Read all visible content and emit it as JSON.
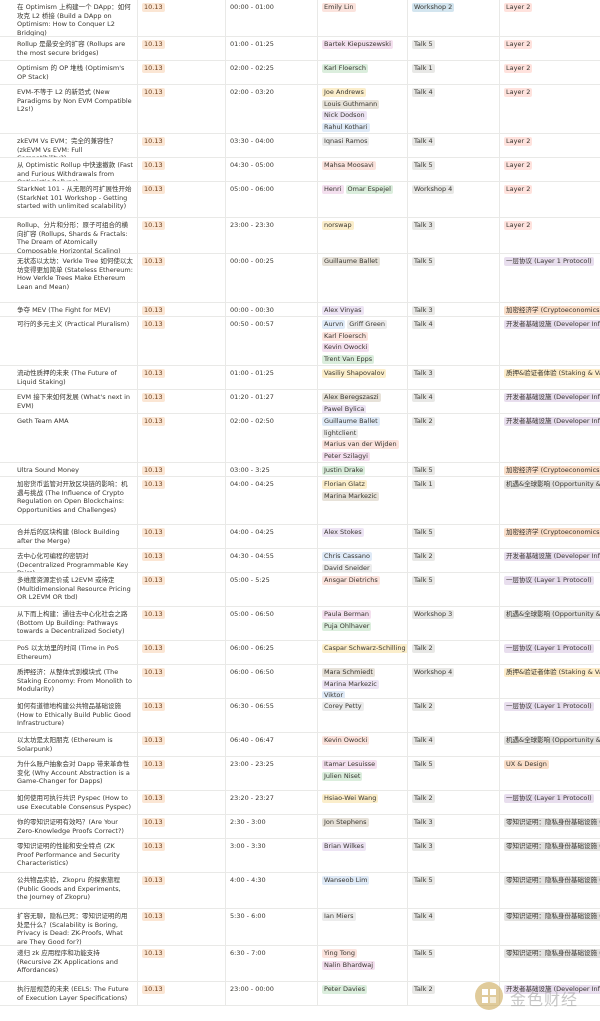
{
  "colors": {
    "speaker": [
      "#fbe3dd",
      "#f4e0ef",
      "#dbeedd",
      "#fbeecb",
      "#e7e2d9",
      "#ede4f4",
      "#dfeaf7",
      "#ececec"
    ],
    "type_workshop2": "#d3e5ef",
    "type_talk": "#e8e8e6",
    "track_l2": "#ffe2dd",
    "track_l1": "#e8deee",
    "track_econ": "#fadec9",
    "track_dev": "#e8deee",
    "track_staking": "#fdecc8",
    "track_opportunity": "#e3e2e0",
    "track_ux": "#fadec9",
    "track_zk": "#e3e2e0"
  },
  "rows": [
    {
      "title": "在 Optimism 上构建一个 DApp：如何攻克 L2 桥接 (Build a DApp on Optimism: How to Conquer L2 Bridging)",
      "date": "10.13",
      "time": "00:00 - 01:00",
      "speakers": [
        "Emily Lin"
      ],
      "type": "Workshop 2",
      "track": "Layer 2"
    },
    {
      "title": "Rollup 是最安全的扩容 (Rollups are the most secure bridges)",
      "date": "10.13",
      "time": "01:00 - 01:25",
      "speakers": [
        "Bartek Kiepuszewski"
      ],
      "type": "Talk 5",
      "track": "Layer 2"
    },
    {
      "title": "Optimism 的 OP 堆栈 (Optimism's OP Stack)",
      "date": "10.13",
      "time": "02:00 - 02:25",
      "speakers": [
        "Karl Floersch"
      ],
      "type": "Talk 1",
      "track": "Layer 2"
    },
    {
      "title": "EVM-不等于 L2 的新范式 (New Paradigms by Non EVM Compatible L2s!)",
      "date": "10.13",
      "time": "02:00 - 03:20",
      "speakers": [
        "Joe Andrews",
        "Louis Guthmann",
        "Nick Dodson",
        "Rahul Kothari"
      ],
      "type": "Talk 4",
      "track": "Layer 2"
    },
    {
      "title": "zkEVM Vs EVM：完全的兼容性？(zkEVM Vs EVM: Full Compatibility?)",
      "date": "10.13",
      "time": "03:30 - 04:00",
      "speakers": [
        "Iqnasi Ramos"
      ],
      "type": "Talk 4",
      "track": "Layer 2"
    },
    {
      "title": "从 Optimistic Rollup 中快速撤款 (Fast and Furious Withdrawals from Optimistic Rollups)",
      "date": "10.13",
      "time": "04:30 - 05:00",
      "speakers": [
        "Mahsa Moosavi"
      ],
      "type": "Talk 5",
      "track": "Layer 2"
    },
    {
      "title": "StarkNet 101 - 从无限的可扩展性开始 (StarkNet 101 Workshop - Getting started with unlimited scalability)",
      "date": "10.13",
      "time": "05:00 - 06:00",
      "speakers": [
        "Henri",
        "Omar Espejel"
      ],
      "type": "Workshop 4",
      "track": "Layer 2"
    },
    {
      "title": "Rollup、分片和分形：原子可组合的横向扩容 (Rollups, Shards & Fractals: The Dream of Atomically Composable Horizontal Scaling)",
      "date": "10.13",
      "time": "23:00 - 23:30",
      "speakers": [
        "norswap"
      ],
      "type": "Talk 3",
      "track": "Layer 2"
    },
    {
      "title": "无状态以太坊：Verkle Tree 如何使以太坊变得更加简单 (Stateless Ethereum: How Verkle Trees Make Ethereum Lean and Mean)",
      "date": "10.13",
      "time": "00:00 - 00:25",
      "speakers": [
        "Guillaume Ballet"
      ],
      "type": "Talk 5",
      "track": "一层协议 (Layer 1 Protocol)"
    },
    {
      "title": "争夺 MEV (The Fight for MEV)",
      "date": "10.13",
      "time": "00:00 - 00:30",
      "speakers": [
        "Alex Vinyas"
      ],
      "type": "Talk 3",
      "track": "加密经济学 (Cryptoeconomics)"
    },
    {
      "title": "可行的多元主义 (Practical Pluralism)",
      "date": "10.13",
      "time": "00:50 - 00:57",
      "speakers": [
        "Aurvn",
        "Griff Green",
        "Karl Floersch",
        "Kevin Owocki",
        "Trent Van Epps"
      ],
      "type": "Talk 4",
      "track": "开发者基础设施 (Developer Infrastructure)"
    },
    {
      "title": "流动性质押的未来 (The Future of Liquid Staking)",
      "date": "10.13",
      "time": "01:00 - 01:25",
      "speakers": [
        "Vasiliy Shapovalov"
      ],
      "type": "Talk 3",
      "track": "质押&验证者体验 (Staking & Validator Experience)"
    },
    {
      "title": "EVM 接下来如何发展 (What's next in EVM)",
      "date": "10.13",
      "time": "01:20 - 01:27",
      "speakers": [
        "Alex Beregszaszi",
        "Pawel Bylica"
      ],
      "type": "Talk 4",
      "track": "开发者基础设施 (Developer Infrastructure)"
    },
    {
      "title": "Geth Team AMA",
      "date": "10.13",
      "time": "02:00 - 02:50",
      "speakers": [
        "Guillaume Ballet",
        "lightclient",
        "Marius van der Wijden",
        "Peter Szilagyi"
      ],
      "type": "Talk 2",
      "track": "开发者基础设施 (Developer Infrastructure)"
    },
    {
      "title": "Ultra Sound Money",
      "date": "10.13",
      "time": "03:00 - 3:25",
      "speakers": [
        "Justin Drake"
      ],
      "type": "Talk 5",
      "track": "加密经济学 (Cryptoeconomics)"
    },
    {
      "title": "加密货币监管对开放区块链的影响：机遇与挑战 (The Influence of Crypto Regulation on Open Blockchains: Opportunities and Challenges)",
      "date": "10.13",
      "time": "04:00 - 04:25",
      "speakers": [
        "Florian Glatz",
        "Marina Markezic"
      ],
      "type": "Talk 1",
      "track": "机遇&全球影响 (Opportunity & Global Impact)"
    },
    {
      "title": "合并后的区块构建 (Block Building after the Merge)",
      "date": "10.13",
      "time": "04:00 - 04:25",
      "speakers": [
        "Alex Stokes"
      ],
      "type": "Talk 5",
      "track": "加密经济学 (Cryptoeconomics)"
    },
    {
      "title": "去中心化可编程的密钥对 (Decentralized Programmable Key Pairs)",
      "date": "10.13",
      "time": "04:30 - 04:55",
      "speakers": [
        "Chris Cassano",
        "David Sneider"
      ],
      "type": "Talk 2",
      "track": "开发者基础设施 (Developer Infrastructure)"
    },
    {
      "title": "多维度资源定价或 L2EVM 或待定 (Multidimensional Resource Pricing OR L2EVM OR tbd)",
      "date": "10.13",
      "time": "05:00 - 5:25",
      "speakers": [
        "Ansgar Dietrichs"
      ],
      "type": "Talk 5",
      "track": "一层协议 (Layer 1 Protocol)"
    },
    {
      "title": "从下而上构建：通往去中心化社会之路 (Bottom Up Building: Pathways towards a Decentralized Society)",
      "date": "10.13",
      "time": "05:00 - 06:50",
      "speakers": [
        "Paula Berman",
        "Puja Ohlhaver"
      ],
      "type": "Workshop 3",
      "track": "机遇&全球影响 (Opportunity & Global Impact)"
    },
    {
      "title": "PoS 以太坊里的时间 (Time in PoS Ethereum)",
      "date": "10.13",
      "time": "06:00 - 06:25",
      "speakers": [
        "Caspar Schwarz-Schilling"
      ],
      "type": "Talk 2",
      "track": "一层协议 (Layer 1 Protocol)"
    },
    {
      "title": "质押经济：从整体式到模块式 (The Staking Economy: From Monolith to Modularity)",
      "date": "10.13",
      "time": "06:00 - 06:50",
      "speakers": [
        "Mara Schmiedt",
        "Marina Markezic",
        "Viktor"
      ],
      "type": "Workshop 4",
      "track": "质押&验证者体验 (Staking & Validator Experience)"
    },
    {
      "title": "如何有道德地构建公共物品基础设施 (How to Ethically Build Public Good Infrastructure)",
      "date": "10.13",
      "time": "06:30 - 06:55",
      "speakers": [
        "Corey Petty"
      ],
      "type": "Talk 2",
      "track": "一层协议 (Layer 1 Protocol)"
    },
    {
      "title": "以太坊是太阳朋克 (Ethereum is Solarpunk)",
      "date": "10.13",
      "time": "06:40 - 06:47",
      "speakers": [
        "Kevin Owocki"
      ],
      "type": "Talk 4",
      "track": "机遇&全球影响 (Opportunity & Global Impact)"
    },
    {
      "title": "为什么账户抽象会对 Dapp 带来革命性变化 (Why Account Abstraction is a Game-Changer for Dapps)",
      "date": "10.13",
      "time": "23:00 - 23:25",
      "speakers": [
        "Itamar Lesuisse",
        "Julien Niset"
      ],
      "type": "Talk 5",
      "track": "UX & Design"
    },
    {
      "title": "如何使用可执行共识 Pyspec (How to use Executable Consensus Pyspec)",
      "date": "10.13",
      "time": "23:20 - 23:27",
      "speakers": [
        "Hsiao-Wei Wang"
      ],
      "type": "Talk 2",
      "track": "一层协议 (Layer 1 Protocol)"
    },
    {
      "title": "你的零知识证明有效吗？(Are Your Zero-Knowledge Proofs Correct?)",
      "date": "10.13",
      "time": "2:30 - 3:00",
      "speakers": [
        "Jon Stephens"
      ],
      "type": "Talk 3",
      "track": "零知识证明：隐私身份基础设施 (ZK Proofs)"
    },
    {
      "title": "零知识证明的性能和安全特点 (ZK Proof Performance and Security Characteristics)",
      "date": "10.13",
      "time": "3:00 - 3:30",
      "speakers": [
        "Brian Wilkes"
      ],
      "type": "Talk 3",
      "track": "零知识证明：隐私身份基础设施 (ZK Proofs)"
    },
    {
      "title": "公共物品实验，Zkopru 的探索旅程 (Public Goods and Experiments, the Journey of Zkopru)",
      "date": "10.13",
      "time": "4:00 - 4:30",
      "speakers": [
        "Wanseob Lim"
      ],
      "type": "Talk 5",
      "track": "零知识证明：隐私身份基础设施 (ZK Proofs)"
    },
    {
      "title": "扩容无聊，隐私已死：零知识证明的用处是什么？(Scalability is Boring, Privacy is Dead: ZK-Proofs, What are They Good for?)",
      "date": "10.13",
      "time": "5:30 - 6:00",
      "speakers": [
        "Ian Miers"
      ],
      "type": "Talk 4",
      "track": "零知识证明：隐私身份基础设施 (ZK Proofs)"
    },
    {
      "title": "递归 zk 应用程序和功能支持 (Recursive ZK Applications and Affordances)",
      "date": "10.13",
      "time": "6:30 - 7:00",
      "speakers": [
        "Ying Tong",
        "Nalin Bhardwaj"
      ],
      "type": "Talk 5",
      "track": "零知识证明：隐私身份基础设施 (ZK Proofs)"
    },
    {
      "title": "执行层规范的未来 (EELS: The Future of Execution Layer Specifications)",
      "date": "10.13",
      "time": "23:00 - 00:00",
      "speakers": [
        "Peter Davies"
      ],
      "type": "Talk 2",
      "track": "开发者基础设施 (Developer Infrastructure)"
    }
  ],
  "watermark": {
    "text": "金色财经"
  }
}
